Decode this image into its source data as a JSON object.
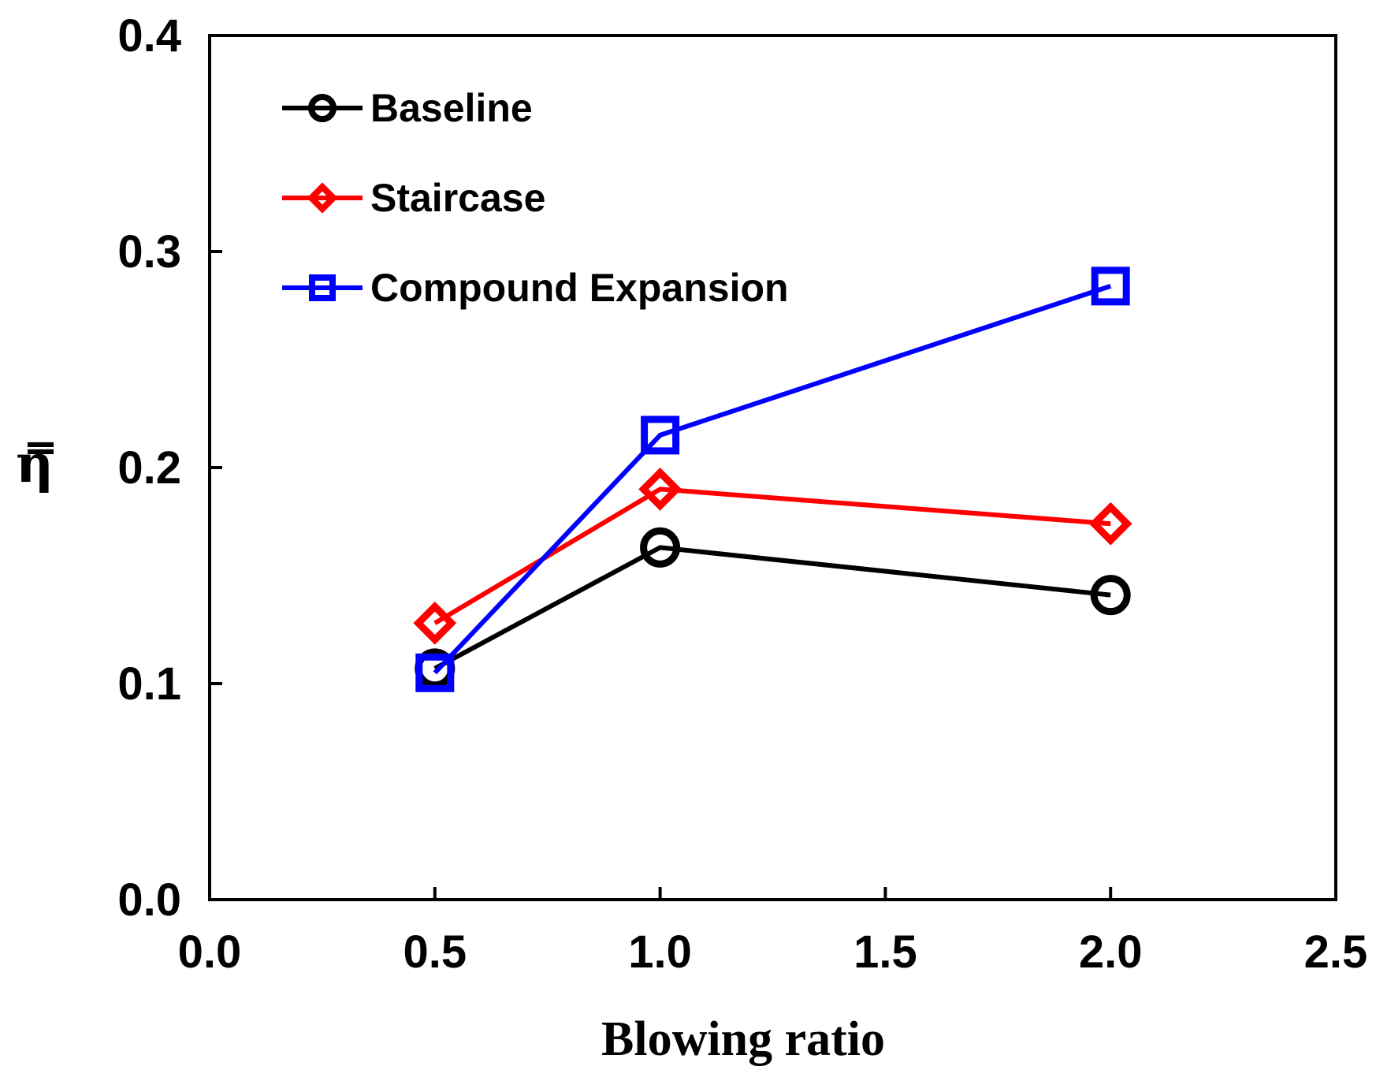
{
  "chart_data": {
    "type": "line",
    "title": "",
    "xlabel": "Blowing ratio",
    "ylabel": "η̿",
    "xlim": [
      0,
      2.5
    ],
    "ylim": [
      0,
      0.4
    ],
    "x_ticks": [
      0.0,
      0.5,
      1.0,
      1.5,
      2.0,
      2.5
    ],
    "y_ticks": [
      0.0,
      0.1,
      0.2,
      0.3,
      0.4
    ],
    "x_tick_labels": [
      "0.0",
      "0.5",
      "1.0",
      "1.5",
      "2.0",
      "2.5"
    ],
    "y_tick_labels": [
      "0.0",
      "0.1",
      "0.2",
      "0.3",
      "0.4"
    ],
    "grid": false,
    "legend_position": "top-left",
    "series": [
      {
        "name": "Baseline",
        "color": "#000000",
        "marker": "circle",
        "x": [
          0.5,
          1.0,
          2.0
        ],
        "values": [
          0.107,
          0.163,
          0.141
        ]
      },
      {
        "name": "Staircase",
        "color": "#ff0000",
        "marker": "diamond",
        "x": [
          0.5,
          1.0,
          2.0
        ],
        "values": [
          0.128,
          0.19,
          0.174
        ]
      },
      {
        "name": "Compound Expansion",
        "color": "#0000ff",
        "marker": "square",
        "x": [
          0.5,
          1.0,
          2.0
        ],
        "values": [
          0.105,
          0.215,
          0.284
        ]
      }
    ]
  }
}
